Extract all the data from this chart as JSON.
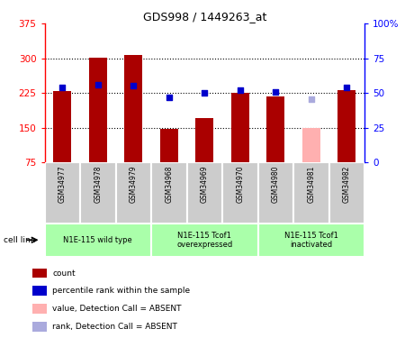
{
  "title": "GDS998 / 1449263_at",
  "samples": [
    "GSM34977",
    "GSM34978",
    "GSM34979",
    "GSM34968",
    "GSM34969",
    "GSM34970",
    "GSM34980",
    "GSM34981",
    "GSM34982"
  ],
  "bar_values": [
    230,
    302,
    308,
    148,
    170,
    226,
    218,
    150,
    232
  ],
  "bar_colors": [
    "#aa0000",
    "#aa0000",
    "#aa0000",
    "#aa0000",
    "#aa0000",
    "#aa0000",
    "#aa0000",
    "#ffb0b0",
    "#aa0000"
  ],
  "dot_values": [
    237,
    242,
    241,
    215,
    226,
    232,
    228,
    212,
    237
  ],
  "dot_colors": [
    "#0000cc",
    "#0000cc",
    "#0000cc",
    "#0000cc",
    "#0000cc",
    "#0000cc",
    "#0000cc",
    "#aaaadd",
    "#0000cc"
  ],
  "ylim_left": [
    75,
    375
  ],
  "ylim_right": [
    0,
    100
  ],
  "yticks_left": [
    75,
    150,
    225,
    300,
    375
  ],
  "yticks_right": [
    0,
    25,
    50,
    75,
    100
  ],
  "ytick_labels_left": [
    "75",
    "150",
    "225",
    "300",
    "375"
  ],
  "ytick_labels_right": [
    "0",
    "25",
    "50",
    "75",
    "100%"
  ],
  "grid_lines": [
    150,
    225,
    300
  ],
  "groups": [
    {
      "label": "N1E-115 wild type",
      "start": 0,
      "end": 2
    },
    {
      "label": "N1E-115 Tcof1\noverexpressed",
      "start": 3,
      "end": 5
    },
    {
      "label": "N1E-115 Tcof1\ninactivated",
      "start": 6,
      "end": 8
    }
  ],
  "group_bg_color": "#aaffaa",
  "sample_bg_color": "#cccccc",
  "legend_items": [
    {
      "color": "#aa0000",
      "label": "count"
    },
    {
      "color": "#0000cc",
      "label": "percentile rank within the sample"
    },
    {
      "color": "#ffb0b0",
      "label": "value, Detection Call = ABSENT"
    },
    {
      "color": "#aaaadd",
      "label": "rank, Detection Call = ABSENT"
    }
  ],
  "cell_line_label": "cell line",
  "bar_width": 0.5,
  "figsize": [
    4.5,
    3.75
  ],
  "dpi": 100
}
